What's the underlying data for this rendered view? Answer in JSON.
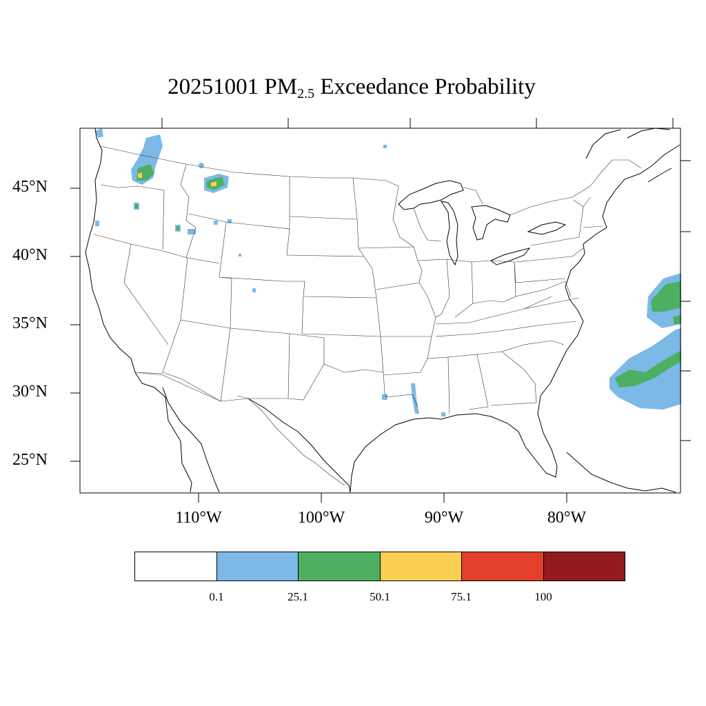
{
  "title": {
    "prefix": "20251001 PM",
    "subscript": "2.5",
    "suffix": " Exceedance Probability"
  },
  "lat_labels": [
    "45°N",
    "40°N",
    "35°N",
    "30°N",
    "25°N"
  ],
  "lon_labels": [
    "110°W",
    "100°W",
    "90°W",
    "80°W"
  ],
  "colorbar": {
    "colors": [
      "#ffffff",
      "#7cb9e6",
      "#4daf62",
      "#f8cf52",
      "#e2402a",
      "#931a1d"
    ],
    "labels": [
      "0.1",
      "25.1",
      "50.1",
      "75.1",
      "100"
    ]
  }
}
